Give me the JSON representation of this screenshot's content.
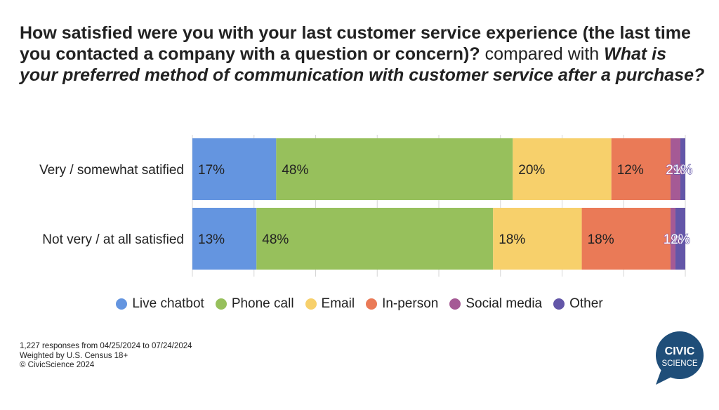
{
  "title": {
    "question1": "How satisfied were you with your last customer service experience (the last time you contacted a company with a question or concern)?",
    "connector": "compared with",
    "question2": "What is your preferred method of communication with customer service after a purchase?"
  },
  "chart_data": {
    "type": "bar",
    "orientation": "horizontal",
    "stacked": true,
    "categories": [
      "Very / somewhat satified",
      "Not very / at all satisfied"
    ],
    "series": [
      {
        "name": "Live chatbot",
        "color": "#6495e0",
        "values": [
          17,
          13
        ],
        "labels": [
          "17%",
          "13%"
        ]
      },
      {
        "name": "Phone call",
        "color": "#97c05c",
        "values": [
          48,
          48
        ],
        "labels": [
          "48%",
          "48%"
        ]
      },
      {
        "name": "Email",
        "color": "#f7d06b",
        "values": [
          20,
          18
        ],
        "labels": [
          "20%",
          "18%"
        ]
      },
      {
        "name": "In-person",
        "color": "#ea7a57",
        "values": [
          12,
          18
        ],
        "labels": [
          "12%",
          "18%"
        ]
      },
      {
        "name": "Social media",
        "color": "#a55a95",
        "values": [
          2,
          1
        ],
        "labels": [
          "2%",
          "1%"
        ]
      },
      {
        "name": "Other",
        "color": "#6356a8",
        "values": [
          1,
          2
        ],
        "labels": [
          "1%",
          "2%"
        ]
      }
    ],
    "xlim": [
      0,
      100
    ],
    "grid": true,
    "legend": "bottom"
  },
  "footer": {
    "line1": "1,227 responses from 04/25/2024 to 07/24/2024",
    "line2": "Weighted by U.S. Census 18+",
    "line3": "© CivicScience 2024"
  },
  "logo": {
    "line1": "CIVIC",
    "line2": "SCIENCE",
    "color": "#1f4e79"
  }
}
